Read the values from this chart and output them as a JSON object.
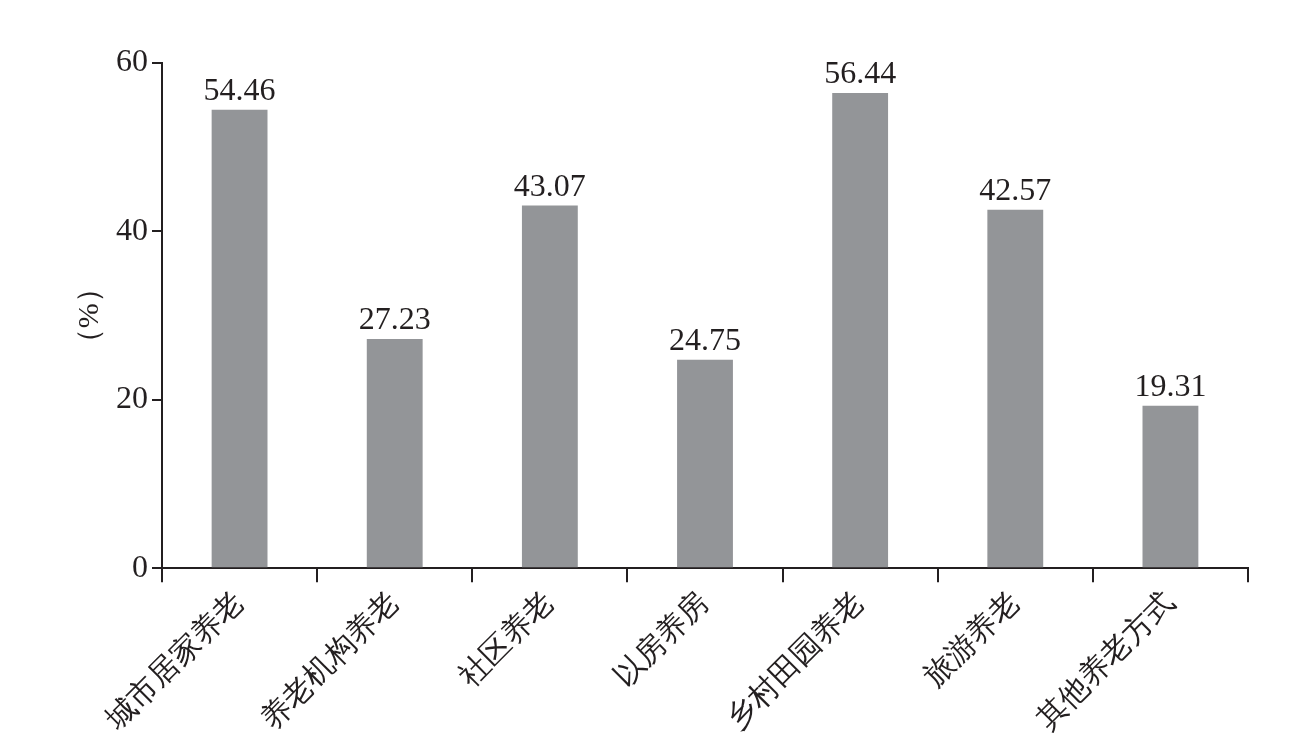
{
  "chart_data": {
    "type": "bar",
    "ylabel": "（%）",
    "categories": [
      "城市居家养老",
      "养老机构养老",
      "社区养老",
      "以房养房",
      "乡村田园养老",
      "旅游养老",
      "其他养老方式"
    ],
    "values": [
      54.46,
      27.23,
      43.07,
      24.75,
      56.44,
      42.57,
      19.31
    ],
    "color": "#939598",
    "ylim": [
      0,
      60
    ],
    "yticks": [
      0,
      20,
      40,
      60
    ],
    "grid": false,
    "data_labels": true,
    "legend": false
  }
}
